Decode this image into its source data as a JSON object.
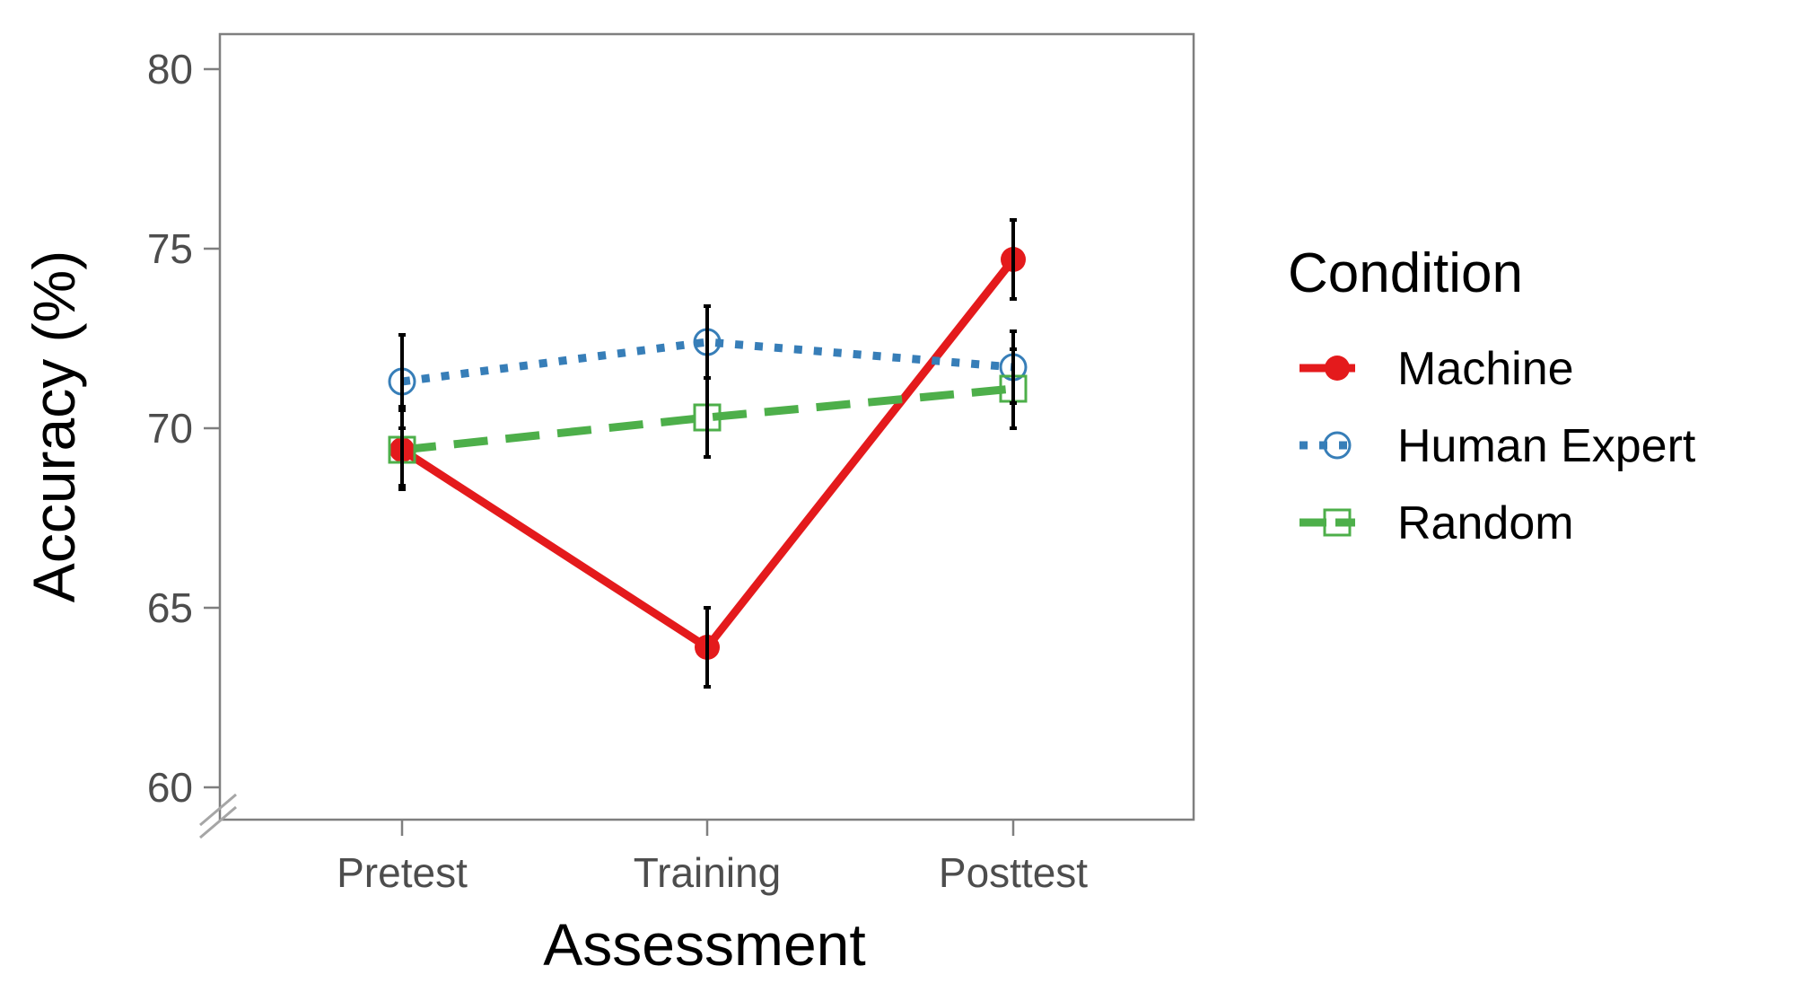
{
  "chart_data": {
    "type": "line",
    "categories": [
      "Pretest",
      "Training",
      "Posttest"
    ],
    "xlabel": "Assessment",
    "ylabel": "Accuracy (%)",
    "ylim": [
      60,
      80
    ],
    "yticks": [
      60,
      65,
      70,
      75,
      80
    ],
    "axis_break": true,
    "grid": false,
    "legend": {
      "title": "Condition",
      "position": "right"
    },
    "series": [
      {
        "name": "Machine",
        "values": [
          69.4,
          63.9,
          74.7
        ],
        "error_low": [
          68.3,
          62.8,
          73.6
        ],
        "error_high": [
          70.5,
          65.0,
          75.8
        ],
        "color": "#e41a1c",
        "line_style": "solid",
        "marker": "filled-circle"
      },
      {
        "name": "Human Expert",
        "values": [
          71.3,
          72.4,
          71.7
        ],
        "error_low": [
          70.0,
          71.4,
          70.7
        ],
        "error_high": [
          72.6,
          73.4,
          72.7
        ],
        "color": "#377eb8",
        "line_style": "dotted",
        "marker": "open-circle"
      },
      {
        "name": "Random",
        "values": [
          69.4,
          70.3,
          71.1
        ],
        "error_low": [
          68.4,
          69.2,
          70.0
        ],
        "error_high": [
          70.6,
          71.4,
          72.2
        ],
        "color": "#4daf4a",
        "line_style": "dashed",
        "marker": "open-square"
      }
    ]
  }
}
